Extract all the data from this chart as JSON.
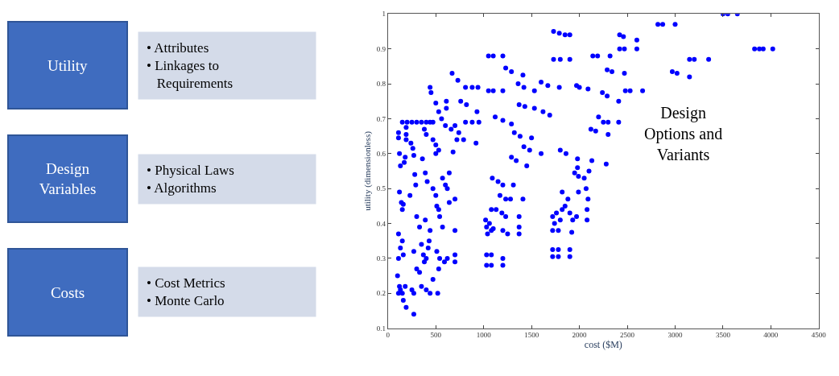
{
  "chart_data": [
    {
      "type": "other",
      "annotations": [
        "Utility",
        "• Attributes\n• Linkages to\n   Requirements",
        "Design\nVariables",
        "• Physical Laws\n• Algorithms",
        "Costs",
        "• Cost Metrics\n• Monte Carlo"
      ]
    },
    {
      "type": "scatter",
      "xlabel": "cost ($M)",
      "ylabel": "utility (dimensionless)",
      "annotations": [
        "Design\nOptions and\nVariants"
      ],
      "marker": "circle",
      "grid": false,
      "legend": false,
      "xlim": [
        0,
        4500
      ],
      "xticks": [
        0,
        500,
        1000,
        1500,
        2000,
        2500,
        3000,
        3500,
        4000,
        4500
      ],
      "ylim": [
        0.1,
        1
      ],
      "yticks": [
        0.1,
        0.2,
        0.3,
        0.4,
        0.5,
        0.6,
        0.7,
        0.8,
        0.9,
        1
      ],
      "x": [
        3830,
        3880,
        3920,
        4020,
        3500,
        3550,
        3650,
        2820,
        2870,
        3000,
        3150,
        3200,
        3350,
        2970,
        3020,
        3150,
        2420,
        2460,
        2600,
        2420,
        2470,
        2600,
        2140,
        2190,
        2320,
        2290,
        2340,
        2470,
        1970,
        2000,
        2090,
        2240,
        2290,
        2410,
        2480,
        2530,
        2660,
        2200,
        2250,
        2300,
        2410,
        2120,
        2170,
        2300,
        2130,
        2280,
        1980,
        2100,
        2050,
        2070,
        2090,
        2080,
        2080,
        1730,
        1790,
        1850,
        1900,
        1730,
        1800,
        1900,
        1600,
        1670,
        1790,
        1050,
        1100,
        1200,
        1050,
        1100,
        1200,
        1230,
        1290,
        1410,
        1360,
        1420,
        1530,
        1370,
        1430,
        1530,
        1620,
        1690,
        1120,
        1200,
        1290,
        1320,
        1380,
        1500,
        1420,
        1480,
        1600,
        1290,
        1340,
        1450,
        1800,
        1860,
        1980,
        810,
        880,
        940,
        670,
        730,
        760,
        820,
        930,
        810,
        880,
        950,
        920,
        700,
        740,
        790,
        720,
        680,
        440,
        450,
        500,
        610,
        610,
        530,
        560,
        600,
        660,
        150,
        200,
        250,
        300,
        350,
        400,
        440,
        470,
        110,
        110,
        190,
        190,
        190,
        240,
        260,
        380,
        400,
        470,
        500,
        530,
        120,
        180,
        130,
        170,
        270,
        360,
        500,
        640,
        120,
        140,
        150,
        160,
        230,
        280,
        290,
        390,
        410,
        470,
        500,
        510,
        530,
        570,
        600,
        620,
        640,
        700,
        700,
        110,
        150,
        130,
        160,
        110,
        100,
        120,
        130,
        150,
        110,
        180,
        160,
        190,
        270,
        250,
        270,
        350,
        400,
        440,
        520,
        470,
        270,
        300,
        330,
        350,
        370,
        380,
        400,
        420,
        430,
        300,
        330,
        390,
        440,
        510,
        540,
        590,
        620,
        530,
        540,
        570,
        700,
        700,
        1020,
        1030,
        1040,
        1060,
        1080,
        1100,
        1080,
        1130,
        1190,
        1230,
        1200,
        1250,
        1370,
        1370,
        1370,
        1090,
        1150,
        1200,
        1310,
        1170,
        1230,
        1280,
        1410,
        1030,
        1080,
        1200,
        1030,
        1080,
        1200,
        1720,
        1780,
        1900,
        1720,
        1780,
        1900,
        1720,
        1780,
        1920,
        1720,
        1740,
        1760,
        1800,
        1820,
        1900,
        1930,
        1970,
        1820,
        1880,
        1850,
        1990,
        1950,
        1990
      ],
      "series": [
        {
          "color": "#0000ff",
          "values": [
            0.9,
            0.9,
            0.9,
            0.9,
            1,
            1,
            1,
            0.97,
            0.97,
            0.97,
            0.87,
            0.87,
            0.87,
            0.835,
            0.83,
            0.82,
            0.94,
            0.935,
            0.925,
            0.9,
            0.9,
            0.9,
            0.88,
            0.88,
            0.88,
            0.84,
            0.835,
            0.83,
            0.795,
            0.79,
            0.785,
            0.775,
            0.765,
            0.75,
            0.78,
            0.78,
            0.78,
            0.705,
            0.69,
            0.69,
            0.69,
            0.67,
            0.665,
            0.655,
            0.58,
            0.57,
            0.56,
            0.55,
            0.53,
            0.5,
            0.47,
            0.44,
            0.41,
            0.95,
            0.945,
            0.94,
            0.94,
            0.87,
            0.87,
            0.87,
            0.805,
            0.795,
            0.79,
            0.88,
            0.88,
            0.88,
            0.78,
            0.78,
            0.78,
            0.845,
            0.835,
            0.825,
            0.8,
            0.79,
            0.78,
            0.74,
            0.735,
            0.73,
            0.72,
            0.71,
            0.705,
            0.695,
            0.685,
            0.66,
            0.65,
            0.645,
            0.62,
            0.61,
            0.6,
            0.59,
            0.58,
            0.565,
            0.61,
            0.6,
            0.585,
            0.79,
            0.79,
            0.79,
            0.83,
            0.81,
            0.75,
            0.74,
            0.72,
            0.69,
            0.69,
            0.69,
            0.63,
            0.68,
            0.66,
            0.64,
            0.64,
            0.605,
            0.79,
            0.775,
            0.745,
            0.75,
            0.73,
            0.72,
            0.7,
            0.68,
            0.67,
            0.69,
            0.69,
            0.69,
            0.69,
            0.69,
            0.69,
            0.69,
            0.69,
            0.66,
            0.645,
            0.675,
            0.655,
            0.64,
            0.63,
            0.615,
            0.67,
            0.655,
            0.64,
            0.625,
            0.61,
            0.6,
            0.59,
            0.565,
            0.575,
            0.595,
            0.585,
            0.6,
            0.545,
            0.49,
            0.46,
            0.44,
            0.455,
            0.48,
            0.54,
            0.51,
            0.545,
            0.52,
            0.5,
            0.48,
            0.45,
            0.44,
            0.53,
            0.51,
            0.5,
            0.46,
            0.47,
            0.38,
            0.37,
            0.35,
            0.33,
            0.31,
            0.3,
            0.25,
            0.22,
            0.21,
            0.2,
            0.2,
            0.22,
            0.18,
            0.16,
            0.14,
            0.21,
            0.2,
            0.22,
            0.21,
            0.2,
            0.2,
            0.24,
            0.32,
            0.27,
            0.26,
            0.34,
            0.31,
            0.29,
            0.3,
            0.33,
            0.35,
            0.42,
            0.39,
            0.41,
            0.38,
            0.32,
            0.3,
            0.29,
            0.3,
            0.27,
            0.42,
            0.39,
            0.31,
            0.29,
            0.41,
            0.39,
            0.37,
            0.4,
            0.38,
            0.385,
            0.44,
            0.44,
            0.43,
            0.42,
            0.38,
            0.37,
            0.42,
            0.39,
            0.37,
            0.53,
            0.52,
            0.51,
            0.51,
            0.48,
            0.47,
            0.47,
            0.47,
            0.31,
            0.31,
            0.3,
            0.28,
            0.28,
            0.28,
            0.325,
            0.325,
            0.325,
            0.305,
            0.305,
            0.305,
            0.38,
            0.38,
            0.375,
            0.42,
            0.4,
            0.43,
            0.41,
            0.44,
            0.43,
            0.41,
            0.42,
            0.49,
            0.47,
            0.45,
            0.49,
            0.545,
            0.535
          ]
        }
      ]
    }
  ]
}
